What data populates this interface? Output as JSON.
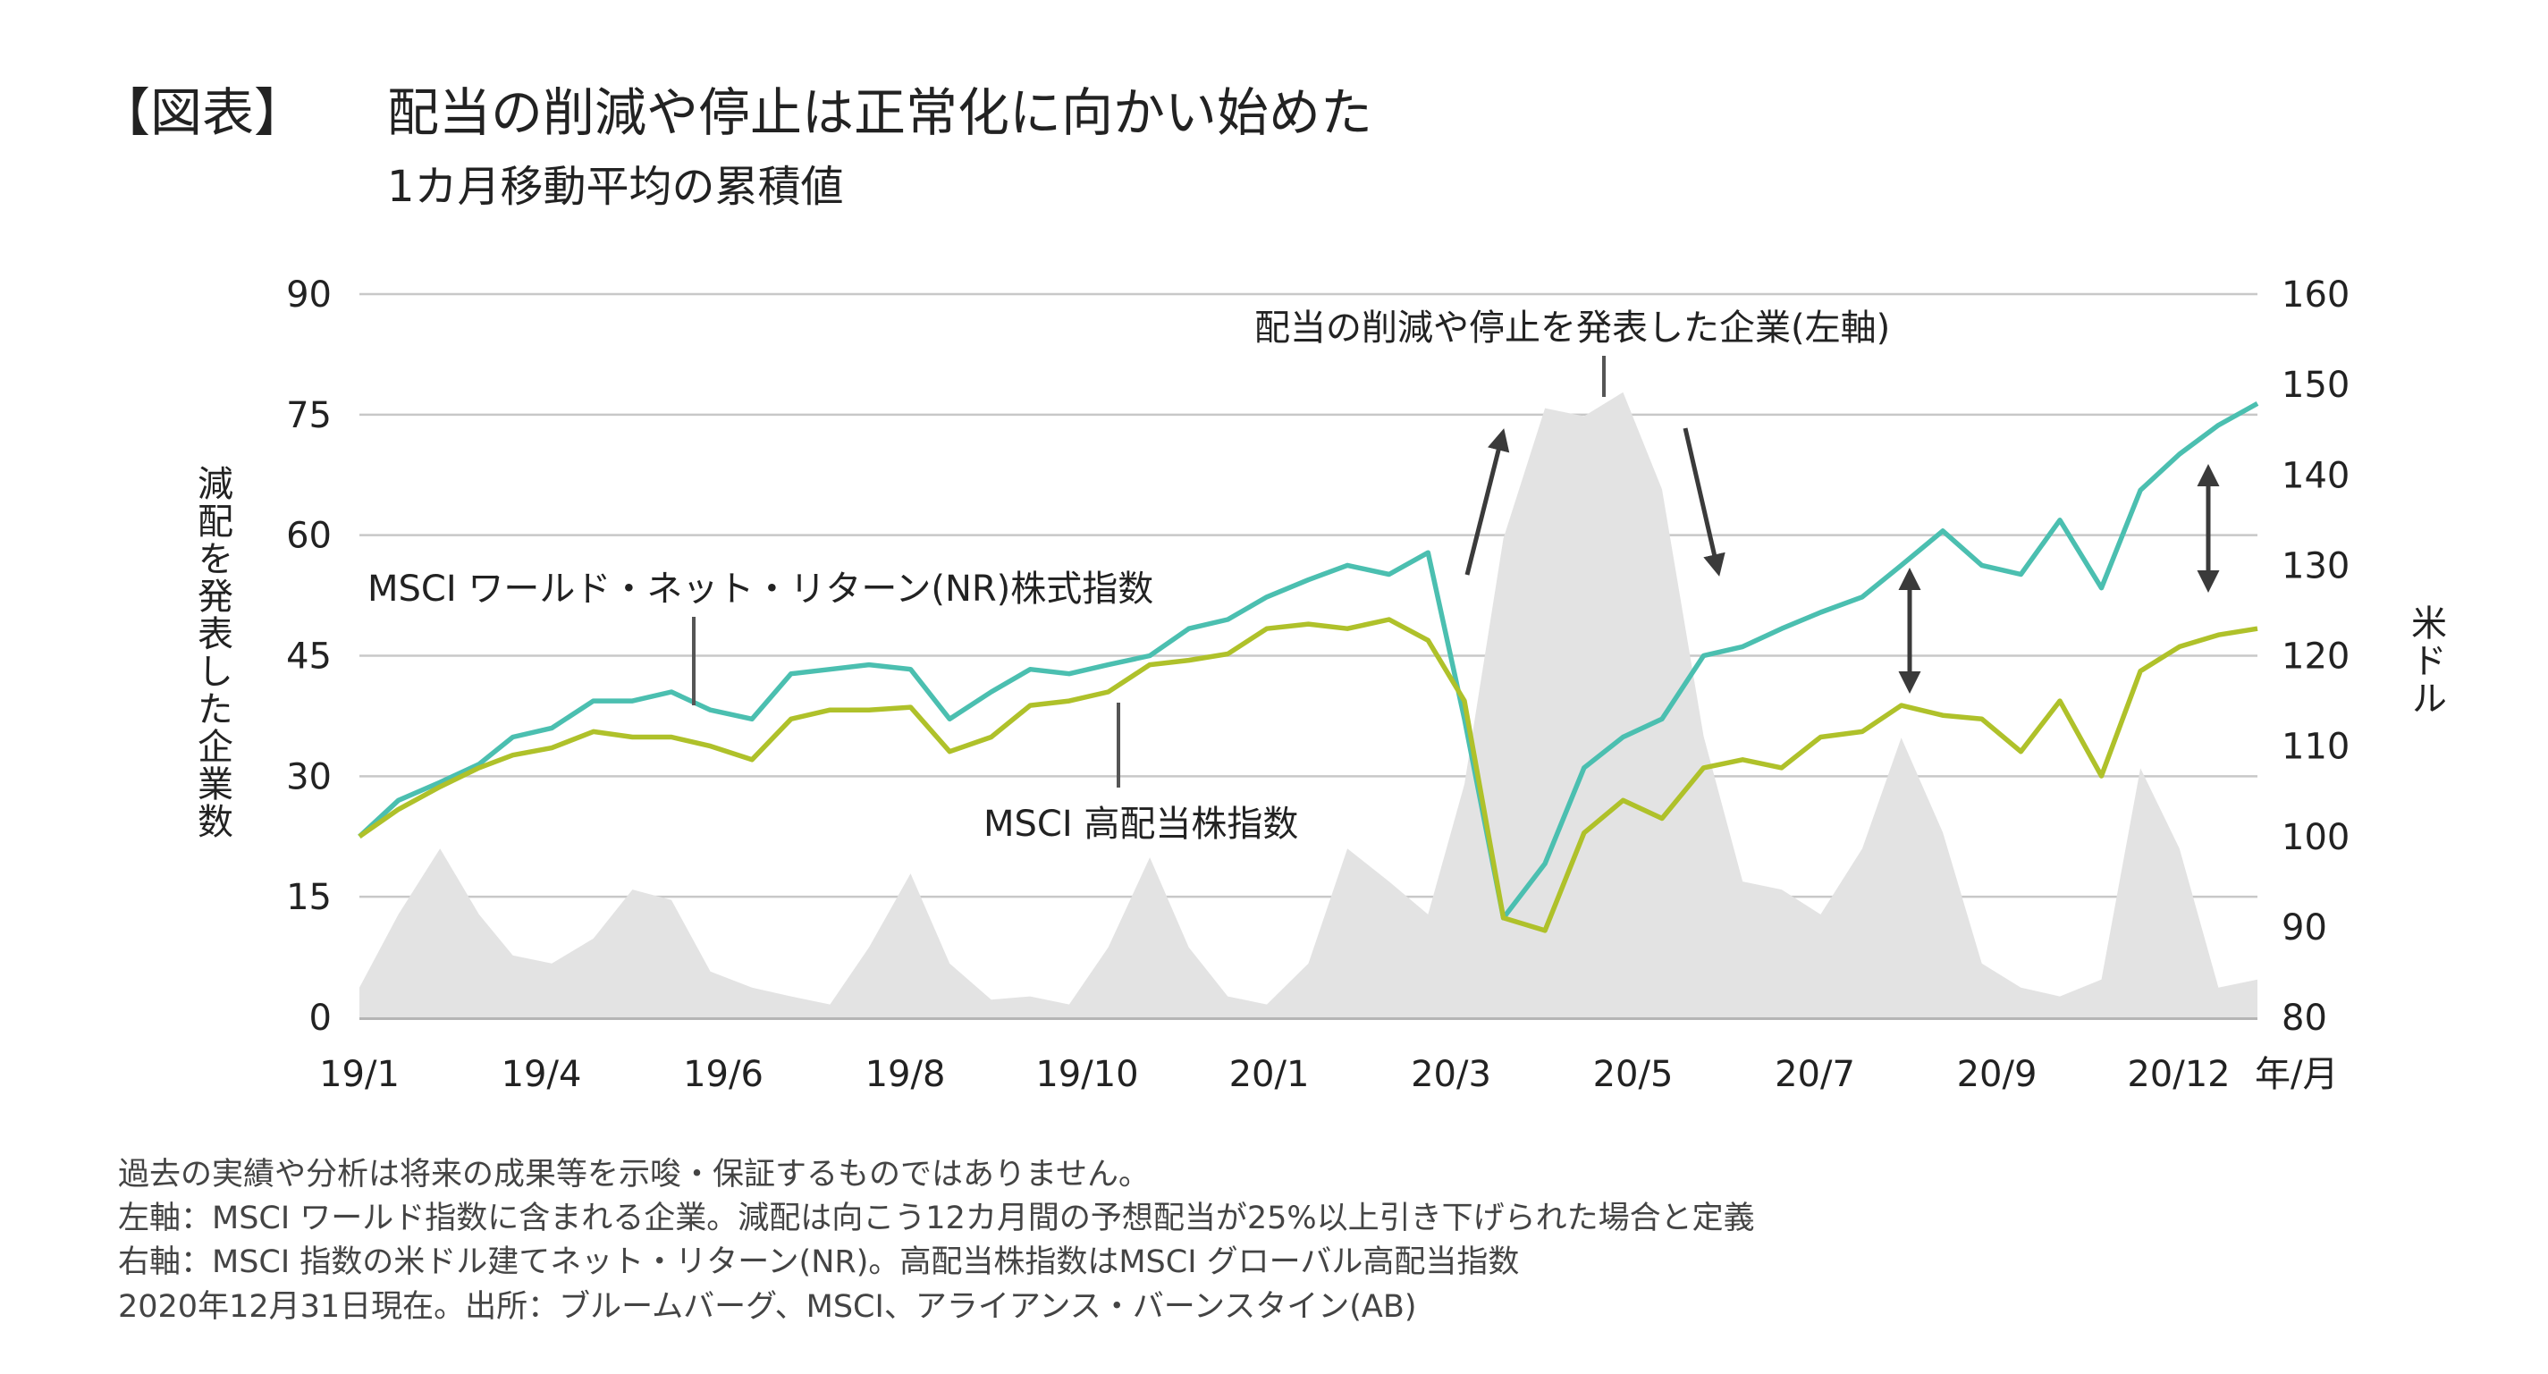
{
  "header": {
    "label": "【図表】",
    "title": "配当の削減や停止は正常化に向かい始めた",
    "subtitle": "1カ月移動平均の累積値"
  },
  "chart_data": {
    "type": "line",
    "title": "配当の削減や停止は正常化に向かい始めた",
    "subtitle": "1カ月移動平均の累積値",
    "left_axis": {
      "label": "減配を発表した企業数",
      "ylim": [
        0,
        90
      ],
      "ticks": [
        "0",
        "15",
        "30",
        "45",
        "60",
        "75",
        "90"
      ]
    },
    "right_axis": {
      "label": "米ドル",
      "ylim": [
        80,
        160
      ],
      "ticks": [
        "80",
        "90",
        "100",
        "110",
        "120",
        "130",
        "140",
        "150",
        "160"
      ]
    },
    "x_axis": {
      "unit_label": "年/月",
      "tick_labels": [
        "19/1",
        "19/4",
        "19/6",
        "19/8",
        "19/10",
        "20/1",
        "20/3",
        "20/5",
        "20/7",
        "20/9",
        "20/12"
      ]
    },
    "grid": true,
    "colors": {
      "world": "#4bbfb0",
      "high_dividend": "#afc12a",
      "dividend_cuts": "#e3e3e3",
      "arrow": "#3a3a3a"
    },
    "x": [
      "2019-01-01",
      "2019-01-16",
      "2019-02-01",
      "2019-02-16",
      "2019-03-01",
      "2019-03-16",
      "2019-04-01",
      "2019-04-16",
      "2019-05-01",
      "2019-05-16",
      "2019-06-01",
      "2019-06-16",
      "2019-07-01",
      "2019-07-16",
      "2019-08-01",
      "2019-08-16",
      "2019-09-01",
      "2019-09-16",
      "2019-10-01",
      "2019-10-16",
      "2019-11-01",
      "2019-11-16",
      "2019-12-01",
      "2019-12-16",
      "2020-01-01",
      "2020-01-16",
      "2020-02-01",
      "2020-02-16",
      "2020-03-01",
      "2020-03-16",
      "2020-04-01",
      "2020-04-16",
      "2020-05-01",
      "2020-05-16",
      "2020-06-01",
      "2020-06-16",
      "2020-07-01",
      "2020-07-16",
      "2020-08-01",
      "2020-08-16",
      "2020-09-01",
      "2020-09-16",
      "2020-10-01",
      "2020-10-16",
      "2020-11-01",
      "2020-11-16",
      "2020-12-01",
      "2020-12-16",
      "2020-12-31"
    ],
    "series": [
      {
        "name": "配当の削減や停止を発表した企業(左軸)",
        "axis": "left",
        "kind": "area",
        "values": [
          3.7,
          12.8,
          21,
          12.8,
          7.7,
          6.7,
          9.8,
          15.9,
          14.6,
          5.7,
          3.7,
          2.6,
          1.6,
          8.7,
          17.9,
          6.7,
          2.2,
          2.6,
          1.6,
          8.7,
          19.9,
          8.7,
          2.6,
          1.6,
          6.7,
          21,
          16.9,
          12.8,
          29,
          59.6,
          75.8,
          74.8,
          77.8,
          65.7,
          35,
          16.9,
          15.9,
          12.8,
          21,
          34.8,
          23,
          6.7,
          3.7,
          2.6,
          4.7,
          31,
          21,
          3.7,
          4.7
        ]
      },
      {
        "name": "MSCI ワールド・ネット・リターン(NR)株式指数",
        "axis": "right",
        "kind": "line",
        "values": [
          100,
          104,
          106,
          108,
          111,
          112,
          115,
          115,
          116,
          114,
          113,
          118,
          118.5,
          119,
          118.5,
          113,
          116,
          118.5,
          118,
          119,
          120,
          123,
          124,
          126.5,
          128.4,
          130,
          129,
          131.4,
          113,
          91,
          97,
          107.6,
          111,
          113,
          120,
          121,
          123,
          124.8,
          126.5,
          130,
          133.8,
          130,
          129,
          135,
          127.5,
          138.3,
          142.3,
          145.5,
          147.9
        ]
      },
      {
        "name": "MSCI 高配当株指数",
        "axis": "right",
        "kind": "line",
        "values": [
          100,
          103,
          105.5,
          107.6,
          109,
          109.8,
          111.6,
          111,
          111,
          110,
          108.5,
          113,
          114,
          114,
          114.3,
          109.4,
          111,
          114.5,
          115,
          116,
          119,
          119.5,
          120.2,
          123,
          123.5,
          123,
          124,
          121.7,
          115,
          91,
          89.6,
          100.4,
          104,
          102,
          107.6,
          108.5,
          107.6,
          111,
          111.6,
          114.5,
          113.4,
          113,
          109.4,
          115,
          106.7,
          118.3,
          121,
          122.3,
          123
        ]
      }
    ]
  },
  "annotations": {
    "world": "MSCI ワールド・ネット・リターン(NR)株式指数",
    "high_dividend": "MSCI 高配当株指数",
    "cuts": "配当の削減や停止を発表した企業(左軸)"
  },
  "notes": [
    "過去の実績や分析は将来の成果等を示唆・保証するものではありません。",
    "左軸：MSCI ワールド指数に含まれる企業。減配は向こう12カ月間の予想配当が25%以上引き下げられた場合と定義",
    "右軸：MSCI 指数の米ドル建てネット・リターン(NR)。高配当株指数はMSCI グローバル高配当指数",
    "2020年12月31日現在。出所：ブルームバーグ、MSCI、アライアンス・バーンスタイン(AB)"
  ]
}
